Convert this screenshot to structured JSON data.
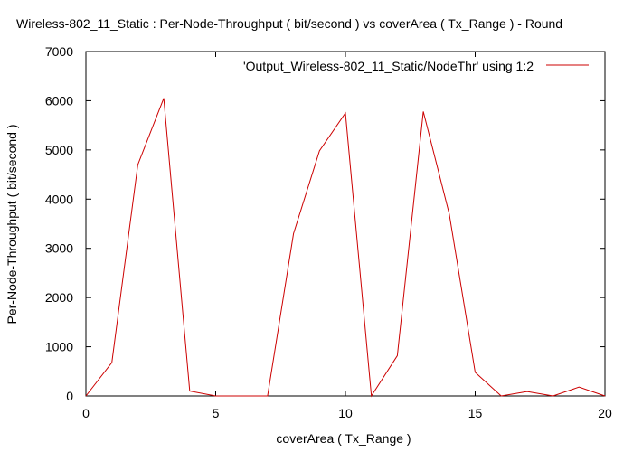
{
  "chart_data": {
    "type": "line",
    "title": "Wireless-802_11_Static : Per-Node-Throughput ( bit/second ) vs coverArea ( Tx_Range ) - Round",
    "xlabel": "coverArea ( Tx_Range )",
    "ylabel": "Per-Node-Throughput ( bit/second )",
    "xlim": [
      0,
      20
    ],
    "ylim": [
      0,
      7000
    ],
    "xticks": [
      0,
      5,
      10,
      15,
      20
    ],
    "yticks": [
      0,
      1000,
      2000,
      3000,
      4000,
      5000,
      6000,
      7000
    ],
    "grid": false,
    "legend_position": "top-right",
    "colors": {
      "series": "#cc0000",
      "axis": "#000000"
    },
    "series": [
      {
        "name": "'Output_Wireless-802_11_Static/NodeThr' using 1:2",
        "x": [
          0,
          1,
          2,
          3,
          4,
          5,
          6,
          7,
          8,
          9,
          10,
          11,
          12,
          13,
          14,
          15,
          16,
          17,
          18,
          19,
          20
        ],
        "y": [
          0,
          680,
          4700,
          6050,
          100,
          0,
          0,
          0,
          3300,
          4980,
          5750,
          0,
          820,
          5780,
          3700,
          480,
          0,
          90,
          0,
          180,
          0
        ]
      }
    ]
  }
}
